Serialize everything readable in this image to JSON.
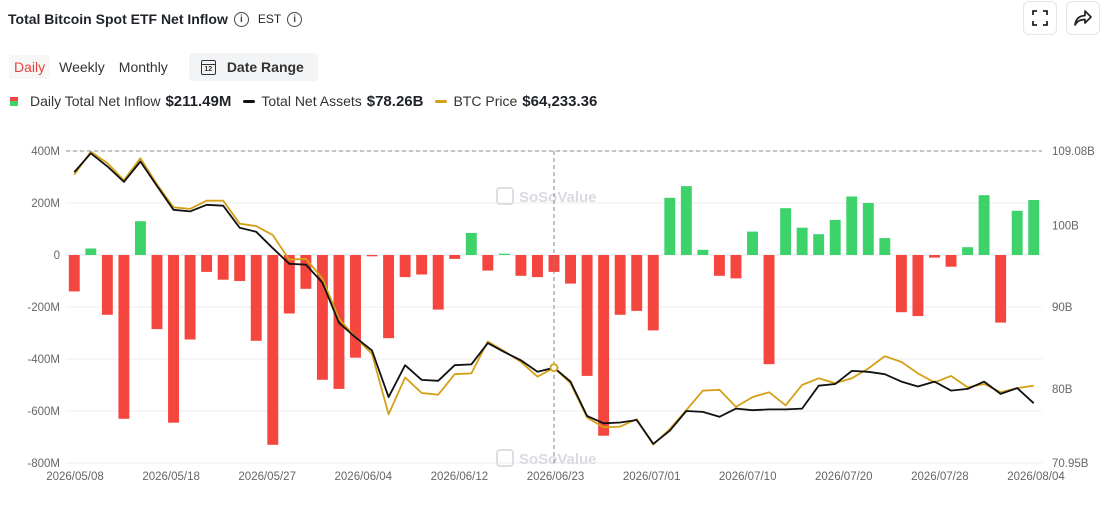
{
  "header": {
    "title": "Total Bitcoin Spot ETF Net Inflow",
    "timezone": "EST"
  },
  "tabs": [
    {
      "label": "Daily",
      "active": true
    },
    {
      "label": "Weekly",
      "active": false
    },
    {
      "label": "Monthly",
      "active": false
    }
  ],
  "date_range": {
    "label": "Date Range",
    "icon_text": "12"
  },
  "legend": [
    {
      "label": "Daily Total Net Inflow",
      "value": "$211.49M"
    },
    {
      "label": "Total Net Assets",
      "value": "$78.26B"
    },
    {
      "label": "BTC Price",
      "value": "$64,233.36"
    }
  ],
  "watermark": "SoSoValue",
  "colors": {
    "positive": "#3ed26a",
    "negative": "#f4453f",
    "assets": "#111111",
    "price": "#d4a017",
    "grid": "#ececec"
  },
  "chart_data": {
    "type": "bar",
    "left_axis": {
      "ticks": [
        "400M",
        "200M",
        "0",
        "-200M",
        "-400M",
        "-600M",
        "-800M"
      ],
      "range": [
        -800,
        400
      ]
    },
    "right_axis": {
      "ticks": [
        "109.08B",
        "100B",
        "90B",
        "80B",
        "70.95B"
      ],
      "range": [
        70.95,
        109.08
      ]
    },
    "x_tick_labels": [
      "2026/05/08",
      "2026/05/18",
      "2026/05/27",
      "2026/06/04",
      "2026/06/12",
      "2026/06/23",
      "2026/07/01",
      "2026/07/10",
      "2026/07/20",
      "2026/07/28",
      "2026/08/04"
    ],
    "series": [
      {
        "name": "Daily Total Net Inflow",
        "type": "bar",
        "values": [
          -140,
          25,
          -230,
          -630,
          130,
          -285,
          -645,
          -325,
          -65,
          -95,
          -100,
          -330,
          -730,
          -225,
          -130,
          -480,
          -515,
          -395,
          -5,
          -320,
          -85,
          -75,
          -210,
          -15,
          85,
          -60,
          5,
          -80,
          -85,
          -65,
          -110,
          -465,
          -695,
          -230,
          -215,
          -290,
          220,
          265,
          20,
          -80,
          -90,
          90,
          -420,
          180,
          105,
          80,
          135,
          225,
          200,
          65,
          -220,
          -235,
          -10,
          -45,
          30,
          230,
          -260,
          170,
          211.49
        ]
      },
      {
        "name": "Total Net Assets",
        "type": "line",
        "values": [
          106.5,
          108.8,
          107.2,
          105.3,
          107.8,
          104.8,
          101.9,
          101.7,
          102.5,
          102.4,
          99.7,
          99.2,
          97.2,
          95.3,
          95.2,
          93.0,
          88.1,
          86.3,
          84.7,
          79.0,
          82.9,
          81.1,
          81.0,
          82.9,
          83.0,
          85.6,
          84.5,
          83.5,
          82.1,
          82.6,
          80.9,
          76.7,
          75.8,
          75.9,
          76.2,
          73.3,
          74.9,
          77.3,
          77.2,
          76.6,
          77.6,
          77.4,
          77.5,
          77.5,
          77.6,
          80.4,
          80.6,
          82.2,
          82.1,
          81.8,
          80.9,
          80.3,
          80.9,
          79.8,
          80.0,
          80.9,
          79.4,
          80.1,
          78.26
        ]
      },
      {
        "name": "BTC Price",
        "type": "line",
        "values": [
          106.2,
          109.0,
          107.6,
          105.5,
          108.2,
          105.0,
          102.2,
          102.0,
          103.0,
          103.0,
          100.2,
          99.9,
          98.8,
          95.8,
          95.9,
          93.5,
          88.6,
          86.3,
          84.3,
          76.9,
          81.4,
          79.5,
          79.3,
          81.8,
          81.9,
          85.8,
          84.6,
          83.3,
          81.5,
          82.6,
          80.7,
          76.5,
          75.3,
          75.4,
          76.3,
          73.2,
          75.1,
          77.4,
          79.8,
          79.9,
          77.8,
          79.0,
          79.6,
          78.0,
          80.5,
          81.3,
          80.7,
          81.3,
          82.5,
          84.0,
          83.3,
          81.9,
          80.8,
          81.6,
          80.2,
          80.6,
          79.6,
          80.1,
          80.4
        ]
      }
    ],
    "crosshair": {
      "x_index": 29,
      "y_label": "109.08B"
    },
    "grid": true
  }
}
